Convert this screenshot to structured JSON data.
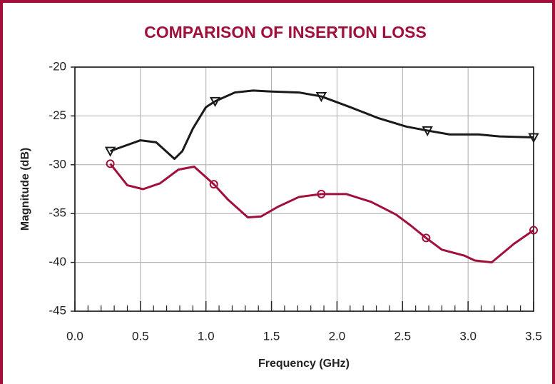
{
  "chart_data": {
    "type": "line",
    "title": "COMPARISON OF INSERTION LOSS",
    "xlabel": "Frequency (GHz)",
    "ylabel": "Magnitude (dB)",
    "xlim": [
      0,
      3.5
    ],
    "ylim": [
      -45,
      -20
    ],
    "xticks": [
      {
        "value": 0,
        "label": "0.0"
      },
      0.5,
      {
        "value": 1,
        "label": "1.0"
      },
      1.5,
      {
        "value": 2,
        "label": "2.0"
      },
      2.5,
      {
        "value": 3,
        "label": "3.0"
      },
      3.5
    ],
    "xminorticks": [
      0.1,
      0.2,
      0.3,
      0.4,
      0.6,
      0.7,
      0.8,
      0.9,
      1.1,
      1.2,
      1.3,
      1.4,
      1.6,
      1.7,
      1.8,
      1.9,
      2.1,
      2.2,
      2.3,
      2.4,
      2.6,
      2.7,
      2.8,
      2.9,
      3.1,
      3.2,
      3.3,
      3.4
    ],
    "yticks": [
      -45,
      -40,
      -35,
      -30,
      -25,
      -20
    ],
    "grid": true,
    "series": [
      {
        "color": "#1a1a1a",
        "marker": "triangle-down",
        "x": [
          0.27,
          0.5,
          0.62,
          0.76,
          0.82,
          0.9,
          1.0,
          1.07,
          1.22,
          1.36,
          1.5,
          1.71,
          1.88,
          2.1,
          2.31,
          2.53,
          2.69,
          2.86,
          3.08,
          3.24,
          3.5
        ],
        "values": [
          -28.6,
          -27.5,
          -27.7,
          -29.4,
          -28.6,
          -26.3,
          -24.1,
          -23.5,
          -22.6,
          -22.4,
          -22.5,
          -22.6,
          -23.0,
          -24.1,
          -25.2,
          -26.1,
          -26.5,
          -26.9,
          -26.9,
          -27.1,
          -27.2
        ],
        "marker_x": [
          0.27,
          1.07,
          1.88,
          2.69,
          3.5
        ]
      },
      {
        "color": "#a0103a",
        "marker": "circle",
        "x": [
          0.27,
          0.4,
          0.52,
          0.65,
          0.79,
          0.91,
          1.06,
          1.17,
          1.32,
          1.42,
          1.55,
          1.71,
          1.88,
          2.07,
          2.26,
          2.45,
          2.56,
          2.68,
          2.8,
          2.97,
          3.05,
          3.18,
          3.35,
          3.5
        ],
        "values": [
          -29.9,
          -32.1,
          -32.5,
          -31.9,
          -30.5,
          -30.2,
          -32.0,
          -33.6,
          -35.4,
          -35.3,
          -34.3,
          -33.3,
          -33.0,
          -33.0,
          -33.8,
          -35.1,
          -36.2,
          -37.5,
          -38.7,
          -39.3,
          -39.8,
          -40.0,
          -38.1,
          -36.7
        ],
        "marker_x": [
          0.27,
          1.06,
          1.88,
          2.68,
          3.5
        ]
      }
    ]
  }
}
